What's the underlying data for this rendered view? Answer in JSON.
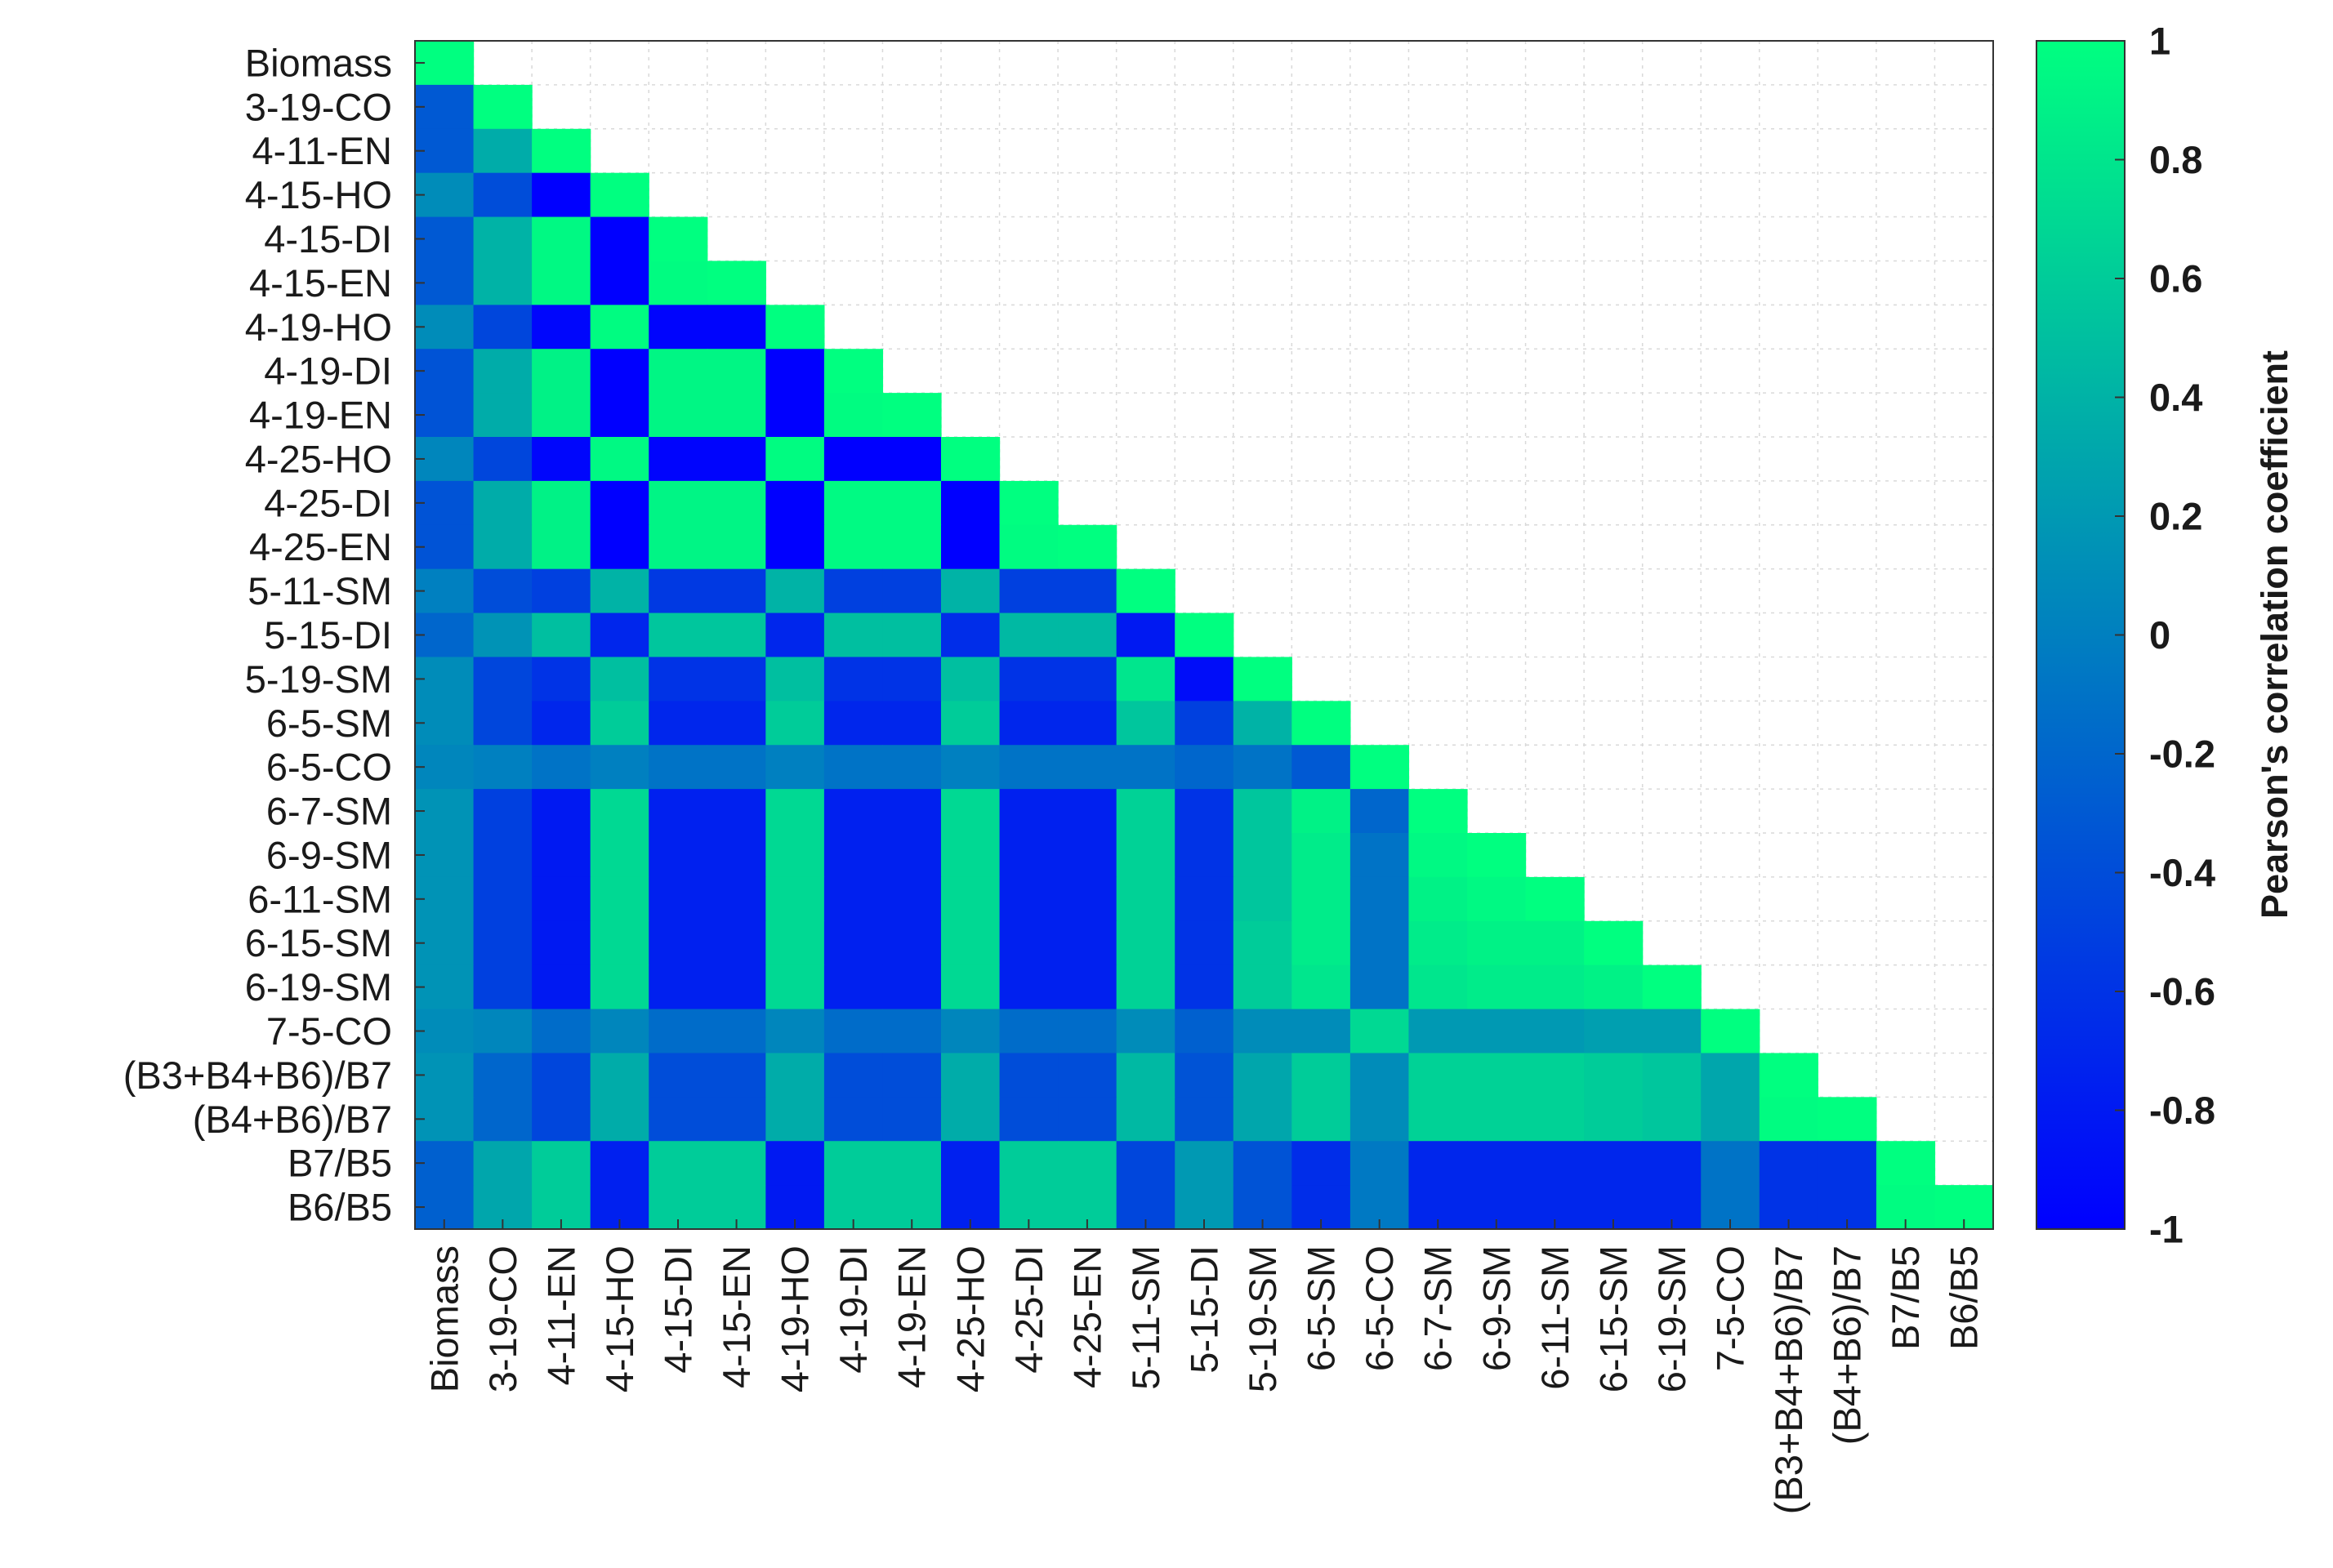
{
  "chart_data": {
    "type": "heatmap",
    "title": "",
    "xlabel": "",
    "ylabel": "",
    "labels": [
      "Biomass",
      "3-19-CO",
      "4-11-EN",
      "4-15-HO",
      "4-15-DI",
      "4-15-EN",
      "4-19-HO",
      "4-19-DI",
      "4-19-EN",
      "4-25-HO",
      "4-25-DI",
      "4-25-EN",
      "5-11-SM",
      "5-15-DI",
      "5-19-SM",
      "6-5-SM",
      "6-5-CO",
      "6-7-SM",
      "6-9-SM",
      "6-11-SM",
      "6-15-SM",
      "6-19-SM",
      "7-5-CO",
      "(B3+B4+B6)/B7",
      "(B4+B6)/B7",
      "B7/B5",
      "B6/B5"
    ],
    "lower_triangle_rows": [
      [
        1
      ],
      [
        -0.3,
        1
      ],
      [
        -0.3,
        0.35,
        1
      ],
      [
        0.1,
        -0.4,
        -1,
        1
      ],
      [
        -0.3,
        0.4,
        0.95,
        -1,
        1
      ],
      [
        -0.3,
        0.4,
        0.95,
        -1,
        0.98,
        1
      ],
      [
        0.1,
        -0.45,
        -0.95,
        0.98,
        -0.97,
        -0.97,
        1
      ],
      [
        -0.35,
        0.35,
        0.9,
        -1,
        0.93,
        0.93,
        -1,
        1
      ],
      [
        -0.35,
        0.35,
        0.9,
        -1,
        0.93,
        0.93,
        -1,
        0.98,
        1
      ],
      [
        0.05,
        -0.45,
        -0.95,
        0.95,
        -0.97,
        -0.97,
        0.98,
        -1,
        -1,
        1
      ],
      [
        -0.35,
        0.35,
        0.9,
        -1,
        0.92,
        0.92,
        -1,
        0.96,
        0.96,
        -1,
        1
      ],
      [
        -0.35,
        0.35,
        0.9,
        -1,
        0.92,
        0.92,
        -1,
        0.96,
        0.96,
        -1,
        0.98,
        1
      ],
      [
        0.0,
        -0.4,
        -0.5,
        0.4,
        -0.55,
        -0.55,
        0.4,
        -0.5,
        -0.5,
        0.4,
        -0.5,
        -0.5,
        1
      ],
      [
        -0.2,
        0.15,
        0.5,
        -0.7,
        0.55,
        0.55,
        -0.7,
        0.5,
        0.5,
        -0.65,
        0.45,
        0.45,
        -0.8,
        1
      ],
      [
        0.1,
        -0.45,
        -0.6,
        0.5,
        -0.6,
        -0.6,
        0.5,
        -0.6,
        -0.6,
        0.5,
        -0.6,
        -0.6,
        0.8,
        -0.9,
        1
      ],
      [
        0.1,
        -0.45,
        -0.7,
        0.6,
        -0.7,
        -0.7,
        0.6,
        -0.7,
        -0.7,
        0.6,
        -0.7,
        -0.7,
        0.55,
        -0.5,
        0.4,
        1
      ],
      [
        0.05,
        0.0,
        -0.1,
        0.0,
        -0.1,
        -0.1,
        0.0,
        -0.1,
        -0.1,
        0.0,
        -0.1,
        -0.1,
        -0.1,
        -0.2,
        -0.1,
        -0.3,
        1
      ],
      [
        0.15,
        -0.5,
        -0.8,
        0.7,
        -0.75,
        -0.75,
        0.7,
        -0.75,
        -0.75,
        0.7,
        -0.75,
        -0.75,
        0.65,
        -0.6,
        0.55,
        0.9,
        -0.2,
        1
      ],
      [
        0.15,
        -0.5,
        -0.8,
        0.7,
        -0.75,
        -0.75,
        0.7,
        -0.75,
        -0.75,
        0.7,
        -0.75,
        -0.75,
        0.65,
        -0.6,
        0.55,
        0.85,
        -0.1,
        0.95,
        1
      ],
      [
        0.15,
        -0.5,
        -0.8,
        0.7,
        -0.75,
        -0.75,
        0.7,
        -0.75,
        -0.75,
        0.7,
        -0.75,
        -0.75,
        0.65,
        -0.6,
        0.55,
        0.85,
        -0.1,
        0.9,
        0.95,
        1
      ],
      [
        0.15,
        -0.5,
        -0.8,
        0.7,
        -0.75,
        -0.75,
        0.7,
        -0.75,
        -0.75,
        0.7,
        -0.75,
        -0.75,
        0.65,
        -0.6,
        0.6,
        0.85,
        -0.1,
        0.85,
        0.9,
        0.9,
        1
      ],
      [
        0.15,
        -0.5,
        -0.8,
        0.7,
        -0.75,
        -0.75,
        0.7,
        -0.75,
        -0.75,
        0.7,
        -0.75,
        -0.75,
        0.65,
        -0.6,
        0.6,
        0.8,
        -0.1,
        0.8,
        0.85,
        0.85,
        0.9,
        1
      ],
      [
        0.1,
        0.05,
        -0.15,
        0.05,
        -0.15,
        -0.15,
        0.05,
        -0.15,
        -0.15,
        0.05,
        -0.15,
        -0.15,
        0.1,
        -0.25,
        0.1,
        0.1,
        0.7,
        0.2,
        0.2,
        0.2,
        0.25,
        0.25,
        1
      ],
      [
        0.15,
        -0.2,
        -0.45,
        0.35,
        -0.4,
        -0.4,
        0.35,
        -0.4,
        -0.4,
        0.35,
        -0.4,
        -0.4,
        0.45,
        -0.35,
        0.3,
        0.6,
        0.1,
        0.65,
        0.65,
        0.65,
        0.6,
        0.55,
        0.3,
        1
      ],
      [
        0.15,
        -0.2,
        -0.45,
        0.35,
        -0.4,
        -0.4,
        0.35,
        -0.4,
        -0.4,
        0.35,
        -0.4,
        -0.4,
        0.45,
        -0.35,
        0.3,
        0.6,
        0.1,
        0.65,
        0.65,
        0.65,
        0.6,
        0.55,
        0.3,
        0.98,
        1
      ],
      [
        -0.25,
        0.3,
        0.6,
        -0.75,
        0.6,
        0.6,
        -0.8,
        0.6,
        0.6,
        -0.75,
        0.6,
        0.6,
        -0.45,
        0.2,
        -0.35,
        -0.65,
        -0.05,
        -0.7,
        -0.7,
        -0.7,
        -0.7,
        -0.7,
        -0.1,
        -0.6,
        -0.6,
        1
      ],
      [
        -0.25,
        0.3,
        0.6,
        -0.75,
        0.6,
        0.6,
        -0.8,
        0.6,
        0.6,
        -0.75,
        0.6,
        0.6,
        -0.45,
        0.2,
        -0.35,
        -0.65,
        -0.05,
        -0.7,
        -0.7,
        -0.7,
        -0.7,
        -0.7,
        -0.1,
        -0.6,
        -0.6,
        0.98,
        1
      ]
    ],
    "colorbar": {
      "label": "Pearson's correlation coefficient",
      "range": [
        -1,
        1
      ],
      "ticks": [
        "1",
        "0.8",
        "0.6",
        "0.4",
        "0.2",
        "0",
        "-0.2",
        "-0.4",
        "-0.6",
        "-0.8",
        "-1"
      ],
      "colormap": [
        "#0000ff",
        "#00ff80"
      ]
    },
    "grid": true,
    "legend": "colorbar-right"
  }
}
